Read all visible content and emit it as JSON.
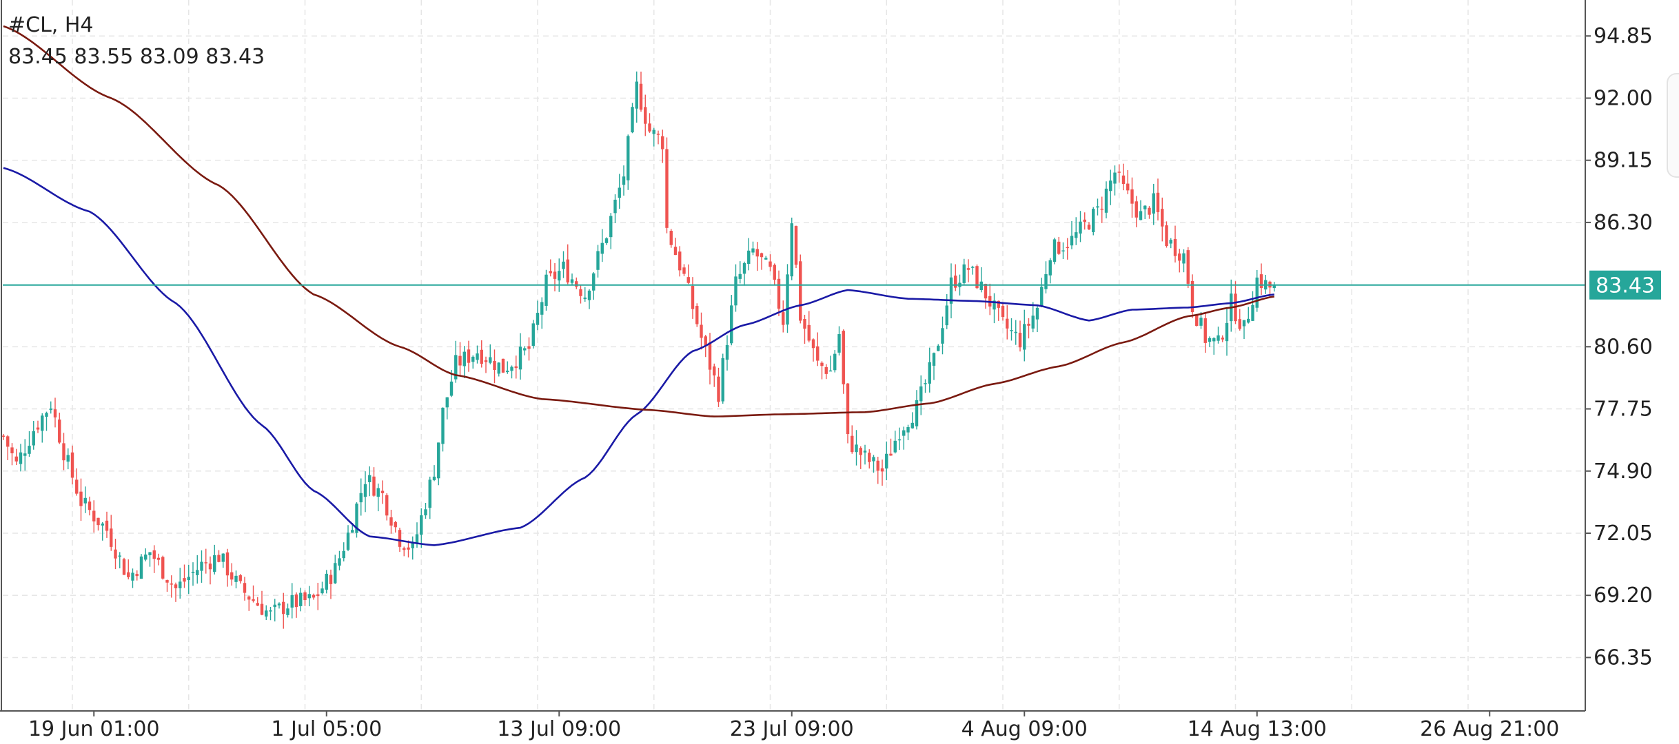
{
  "header": {
    "symbol_timeframe": "#CL, H4",
    "ohlc": "83.45 83.55 83.09 83.43"
  },
  "colors": {
    "up_candle": "#26a69a",
    "down_candle": "#ef5350",
    "ma_fast": "#1a1aa6",
    "ma_slow": "#7a1a10",
    "price_line": "#26a69a",
    "grid": "#e6e6e6",
    "axis": "#555555"
  },
  "chart_data": {
    "type": "candlestick",
    "symbol": "#CL",
    "timeframe": "H4",
    "ylim": [
      63.9,
      96.5
    ],
    "y_ticks": [
      94.85,
      92.0,
      89.15,
      86.3,
      83.43,
      80.6,
      77.75,
      74.9,
      72.05,
      69.2,
      66.35
    ],
    "y_tick_labels": [
      "94.85",
      "92.00",
      "89.15",
      "86.30",
      "83.43",
      "80.60",
      "77.75",
      "74.90",
      "72.05",
      "69.20",
      "66.35"
    ],
    "x_tick_labels": [
      "19 Jun 01:00",
      "1 Jul 05:00",
      "13 Jul 09:00",
      "23 Jul 09:00",
      "4 Aug 09:00",
      "14 Aug 13:00",
      "26 Aug 21:00"
    ],
    "grid": true,
    "current_price": 83.43,
    "current_price_label": "83.43",
    "close_waypoints": [
      [
        0,
        76.5
      ],
      [
        3,
        75.2
      ],
      [
        7,
        76.8
      ],
      [
        11,
        78.0
      ],
      [
        14,
        75.8
      ],
      [
        18,
        73.5
      ],
      [
        24,
        72.2
      ],
      [
        29,
        70.0
      ],
      [
        34,
        71.2
      ],
      [
        40,
        69.5
      ],
      [
        46,
        70.6
      ],
      [
        50,
        71.0
      ],
      [
        55,
        69.5
      ],
      [
        62,
        68.3
      ],
      [
        66,
        68.8
      ],
      [
        72,
        69.0
      ],
      [
        77,
        70.4
      ],
      [
        80,
        72.0
      ],
      [
        84,
        74.6
      ],
      [
        88,
        73.8
      ],
      [
        92,
        71.8
      ],
      [
        95,
        71.3
      ],
      [
        98,
        73.5
      ],
      [
        100,
        75.0
      ],
      [
        102,
        77.6
      ],
      [
        105,
        79.8
      ],
      [
        110,
        80.4
      ],
      [
        116,
        79.6
      ],
      [
        122,
        80.5
      ],
      [
        126,
        83.5
      ],
      [
        130,
        84.2
      ],
      [
        135,
        83.0
      ],
      [
        140,
        85.8
      ],
      [
        144,
        88.5
      ],
      [
        147,
        92.5
      ],
      [
        150,
        90.5
      ],
      [
        153,
        90.0
      ],
      [
        154,
        86.0
      ],
      [
        158,
        83.8
      ],
      [
        162,
        81.0
      ],
      [
        166,
        78.5
      ],
      [
        170,
        83.5
      ],
      [
        174,
        85.0
      ],
      [
        178,
        84.0
      ],
      [
        181,
        81.8
      ],
      [
        183,
        86.5
      ],
      [
        185,
        82.0
      ],
      [
        189,
        79.8
      ],
      [
        192,
        79.5
      ],
      [
        194,
        81.2
      ],
      [
        196,
        76.3
      ],
      [
        200,
        75.5
      ],
      [
        204,
        74.9
      ],
      [
        208,
        76.8
      ],
      [
        212,
        77.8
      ],
      [
        216,
        80.0
      ],
      [
        220,
        83.5
      ],
      [
        224,
        84.2
      ],
      [
        228,
        83.0
      ],
      [
        232,
        81.6
      ],
      [
        236,
        80.9
      ],
      [
        240,
        82.4
      ],
      [
        243,
        85.0
      ],
      [
        248,
        85.5
      ],
      [
        254,
        86.8
      ],
      [
        258,
        88.6
      ],
      [
        260,
        87.8
      ],
      [
        264,
        86.6
      ],
      [
        267,
        87.2
      ],
      [
        270,
        85.5
      ],
      [
        274,
        84.8
      ],
      [
        276,
        82.5
      ],
      [
        279,
        81.0
      ],
      [
        282,
        80.7
      ],
      [
        285,
        82.6
      ],
      [
        288,
        81.4
      ],
      [
        291,
        83.7
      ],
      [
        295,
        83.2
      ]
    ],
    "series": [
      {
        "key": "ma_fast",
        "points": [
          [
            0,
            88.8
          ],
          [
            20,
            86.8
          ],
          [
            40,
            82.6
          ],
          [
            60,
            77.0
          ],
          [
            72,
            74.0
          ],
          [
            85,
            71.9
          ],
          [
            100,
            71.5
          ],
          [
            120,
            72.3
          ],
          [
            135,
            74.6
          ],
          [
            147,
            77.5
          ],
          [
            160,
            80.4
          ],
          [
            172,
            81.6
          ],
          [
            185,
            82.5
          ],
          [
            196,
            83.2
          ],
          [
            210,
            82.8
          ],
          [
            225,
            82.7
          ],
          [
            240,
            82.5
          ],
          [
            252,
            81.8
          ],
          [
            262,
            82.3
          ],
          [
            275,
            82.4
          ],
          [
            285,
            82.6
          ],
          [
            295,
            83.0
          ]
        ]
      },
      {
        "key": "ma_slow",
        "points": [
          [
            0,
            95.3
          ],
          [
            25,
            92.0
          ],
          [
            50,
            88.0
          ],
          [
            72,
            83.0
          ],
          [
            92,
            80.6
          ],
          [
            105,
            79.3
          ],
          [
            125,
            78.2
          ],
          [
            150,
            77.7
          ],
          [
            165,
            77.4
          ],
          [
            180,
            77.5
          ],
          [
            200,
            77.6
          ],
          [
            215,
            78.0
          ],
          [
            230,
            78.9
          ],
          [
            245,
            79.7
          ],
          [
            260,
            80.8
          ],
          [
            275,
            82.0
          ],
          [
            285,
            82.4
          ],
          [
            295,
            82.9
          ]
        ]
      }
    ]
  }
}
